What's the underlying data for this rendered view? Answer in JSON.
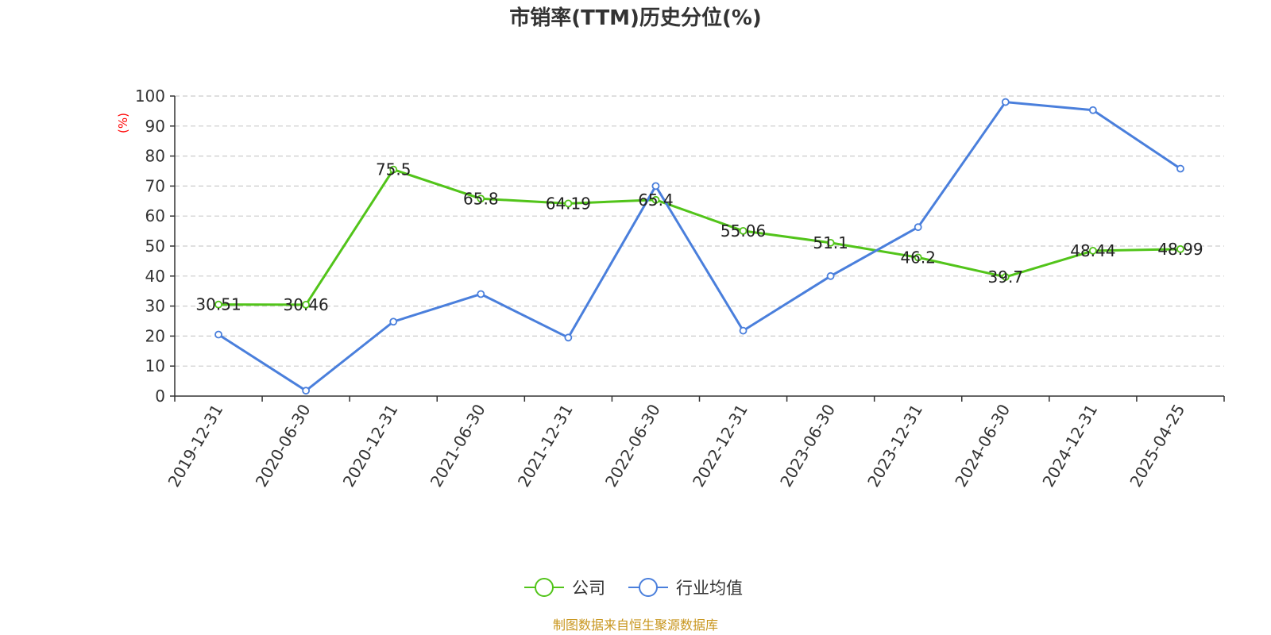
{
  "chart_data": {
    "type": "line",
    "title": "市销率(TTM)历史分位(%)",
    "ylabel": "(%)",
    "xlabel": "",
    "ylim": [
      0,
      100
    ],
    "yticks": [
      0,
      10,
      20,
      30,
      40,
      50,
      60,
      70,
      80,
      90,
      100
    ],
    "grid": true,
    "legend_position": "bottom",
    "categories": [
      "2019-12-31",
      "2020-06-30",
      "2020-12-31",
      "2021-06-30",
      "2021-12-31",
      "2022-06-30",
      "2022-12-31",
      "2023-06-30",
      "2023-12-31",
      "2024-06-30",
      "2024-12-31",
      "2025-04-25"
    ],
    "series": [
      {
        "name": "公司",
        "color": "#52c41a",
        "values": [
          30.51,
          30.46,
          75.5,
          65.8,
          64.19,
          65.4,
          55.06,
          51.1,
          46.2,
          39.7,
          48.44,
          48.99
        ],
        "labels": [
          "30.51",
          "30.46",
          "75.5",
          "65.8",
          "64.19",
          "65.4",
          "55.06",
          "51.1",
          "46.2",
          "39.7",
          "48.44",
          "48.99"
        ]
      },
      {
        "name": "行业均值",
        "color": "#4a7fdc",
        "values": [
          20.5,
          1.8,
          24.8,
          34.0,
          19.5,
          70.0,
          21.8,
          40.0,
          56.3,
          98.0,
          95.3,
          75.8
        ]
      }
    ],
    "source": "制图数据来自恒生聚源数据库"
  }
}
